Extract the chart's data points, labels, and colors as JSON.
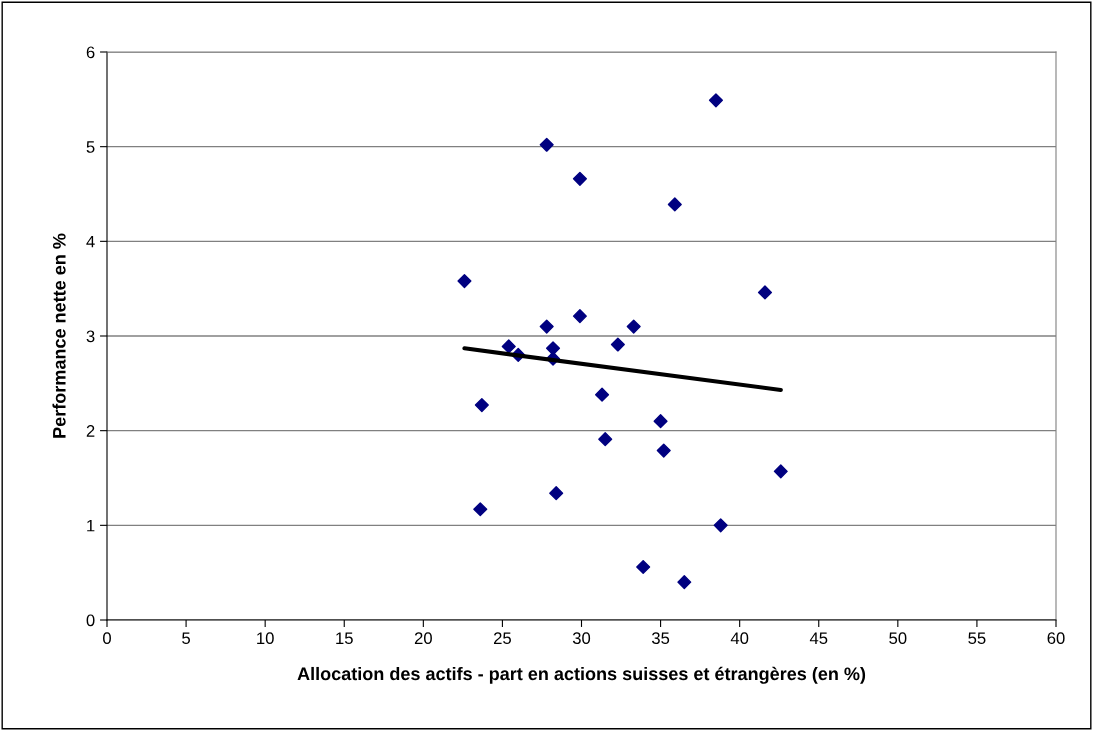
{
  "chart_data": {
    "type": "scatter",
    "xlabel": "Allocation des actifs - part en actions suisses et étrangères (en %)",
    "ylabel": "Performance nette en %",
    "xlim": [
      0,
      60
    ],
    "xticks": [
      0,
      5,
      10,
      15,
      20,
      25,
      30,
      35,
      40,
      45,
      50,
      55,
      60
    ],
    "ylim": [
      0,
      6
    ],
    "yticks": [
      0,
      1,
      2,
      3,
      4,
      5,
      6
    ],
    "grid": "y",
    "legend": false,
    "marker": "diamond",
    "series": [
      {
        "color": "#000080",
        "x": [
          22.6,
          23.6,
          23.7,
          25.4,
          26.0,
          27.8,
          27.8,
          28.2,
          28.2,
          28.4,
          29.9,
          29.9,
          31.3,
          31.5,
          32.3,
          33.3,
          33.9,
          35.0,
          35.2,
          35.9,
          36.5,
          38.5,
          38.8,
          41.6,
          42.6
        ],
        "values": [
          3.58,
          1.17,
          2.27,
          2.89,
          2.8,
          5.02,
          3.1,
          2.87,
          2.76,
          1.34,
          4.66,
          3.21,
          2.38,
          1.91,
          2.91,
          3.1,
          0.56,
          2.1,
          1.79,
          4.39,
          0.4,
          5.49,
          1.0,
          3.46,
          1.57
        ]
      },
      {
        "type": "line",
        "color": "#000000",
        "marker": "none",
        "line_style": "solid",
        "x": [
          22.6,
          42.6
        ],
        "values": [
          2.87,
          2.43
        ]
      }
    ]
  }
}
